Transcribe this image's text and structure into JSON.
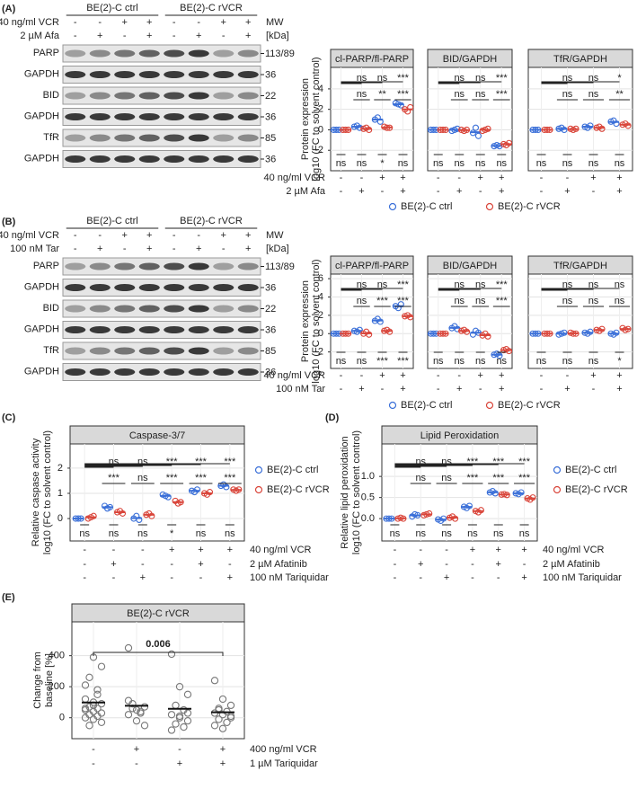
{
  "blots": [
    {
      "label": "(A)",
      "groups": [
        "BE(2)-C ctrl",
        "BE(2)-C rVCR"
      ],
      "treatments": [
        {
          "name": "40 ng/ml VCR",
          "signs": [
            "-",
            "-",
            "+",
            "+",
            "-",
            "-",
            "+",
            "+"
          ]
        },
        {
          "name": "2 µM Afa",
          "signs": [
            "-",
            "+",
            "-",
            "+",
            "-",
            "+",
            "-",
            "+"
          ]
        }
      ],
      "mw_header": [
        "MW",
        "[kDa]"
      ],
      "rows": [
        {
          "name": "PARP",
          "mw": "113/89"
        },
        {
          "name": "GAPDH",
          "mw": "36"
        },
        {
          "name": "BID",
          "mw": "22"
        },
        {
          "name": "GAPDH",
          "mw": "36"
        },
        {
          "name": "TfR",
          "mw": "85"
        },
        {
          "name": "GAPDH",
          "mw": "36"
        }
      ]
    },
    {
      "label": "(B)",
      "groups": [
        "BE(2)-C ctrl",
        "BE(2)-C rVCR"
      ],
      "treatments": [
        {
          "name": "40 ng/ml VCR",
          "signs": [
            "-",
            "-",
            "+",
            "+",
            "-",
            "-",
            "+",
            "+"
          ]
        },
        {
          "name": "100 nM Tar",
          "signs": [
            "-",
            "+",
            "-",
            "+",
            "-",
            "+",
            "-",
            "+"
          ]
        }
      ],
      "mw_header": [
        "MW",
        "[kDa]"
      ],
      "rows": [
        {
          "name": "PARP",
          "mw": "113/89"
        },
        {
          "name": "GAPDH",
          "mw": "36"
        },
        {
          "name": "BID",
          "mw": "22"
        },
        {
          "name": "GAPDH",
          "mw": "36"
        },
        {
          "name": "TfR",
          "mw": "85"
        },
        {
          "name": "GAPDH",
          "mw": "36"
        }
      ]
    }
  ],
  "chart_data": [
    {
      "type": "dot",
      "ylabel": [
        "Protein expression",
        "log10 (FC to solvent control)"
      ],
      "ylim": [
        -4,
        6.1
      ],
      "yticks": [
        -2,
        0,
        2,
        4
      ],
      "grid": true,
      "legend": "bottom",
      "series": [
        {
          "name": "BE(2)-C ctrl",
          "color": "#3a6fd8"
        },
        {
          "name": "BE(2)-C rVCR",
          "color": "#d9453a"
        }
      ],
      "conditions": [
        {
          "name": "40 ng/ml VCR",
          "signs": [
            "-",
            "-",
            "+",
            "+"
          ]
        },
        {
          "name": "2 µM Afa",
          "signs": [
            "-",
            "+",
            "-",
            "+"
          ]
        }
      ],
      "facets": [
        {
          "title": "cl-PARP/fl-PARP",
          "values": [
            [
              [
                0,
                0,
                0
              ],
              [
                0.3,
                0.4,
                0.2
              ],
              [
                1.0,
                1.2,
                0.8
              ],
              [
                2.6,
                2.5,
                2.4
              ]
            ],
            [
              [
                0,
                0,
                0
              ],
              [
                0.1,
                0.2,
                0
              ],
              [
                0.3,
                0.2,
                0.2
              ],
              [
                2.0,
                1.8,
                2.2
              ]
            ]
          ],
          "sig_top": [
            "ns",
            "ns",
            "***"
          ],
          "sig_mid": [
            "ns",
            "**",
            "***"
          ],
          "sig_bottom": [
            "ns",
            "ns",
            "*",
            "ns"
          ]
        },
        {
          "title": "BID/GAPDH",
          "values": [
            [
              [
                0,
                0,
                0
              ],
              [
                -0.1,
                0,
                0.1
              ],
              [
                -0.3,
                0.2,
                -0.6
              ],
              [
                -1.6,
                -1.5,
                -1.6
              ]
            ],
            [
              [
                0,
                0,
                0
              ],
              [
                0,
                -0.1,
                0
              ],
              [
                -0.1,
                0,
                0.1
              ],
              [
                -1.4,
                -1.5,
                -1.3
              ]
            ]
          ],
          "sig_top": [
            "ns",
            "ns",
            "***"
          ],
          "sig_mid": [
            "ns",
            "ns",
            "***"
          ],
          "sig_bottom": [
            "ns",
            "ns",
            "ns",
            "ns"
          ]
        },
        {
          "title": "TfR/GAPDH",
          "values": [
            [
              [
                0,
                0,
                0
              ],
              [
                0.1,
                0.2,
                0
              ],
              [
                0.3,
                0.2,
                0.4
              ],
              [
                0.8,
                0.9,
                0.6
              ]
            ],
            [
              [
                0,
                0,
                0
              ],
              [
                0.1,
                0,
                0.1
              ],
              [
                0.2,
                0.3,
                0.1
              ],
              [
                0.5,
                0.6,
                0.4
              ]
            ]
          ],
          "sig_top": [
            "ns",
            "ns",
            "*"
          ],
          "sig_mid": [
            "ns",
            "ns",
            "**"
          ],
          "sig_bottom": [
            "ns",
            "ns",
            "ns",
            "ns"
          ]
        }
      ]
    },
    {
      "type": "dot",
      "ylabel": [
        "Protein expression",
        "log10 (FC to solvent control)"
      ],
      "ylim": [
        -3.8,
        6.5
      ],
      "yticks": [
        -2,
        0,
        2,
        4,
        6
      ],
      "grid": true,
      "legend": "bottom",
      "series": [
        {
          "name": "BE(2)-C ctrl",
          "color": "#3a6fd8"
        },
        {
          "name": "BE(2)-C rVCR",
          "color": "#d9453a"
        }
      ],
      "conditions": [
        {
          "name": "40 ng/ml VCR",
          "signs": [
            "-",
            "-",
            "+",
            "+"
          ]
        },
        {
          "name": "100 nM Tar",
          "signs": [
            "-",
            "+",
            "-",
            "+"
          ]
        }
      ],
      "facets": [
        {
          "title": "cl-PARP/fl-PARP",
          "values": [
            [
              [
                0,
                0,
                0
              ],
              [
                0.3,
                0.2,
                0.4
              ],
              [
                1.4,
                1.6,
                1.3
              ],
              [
                3.0,
                2.8,
                3.2
              ]
            ],
            [
              [
                0,
                0,
                0
              ],
              [
                0,
                0.2,
                -0.1
              ],
              [
                0.3,
                0.4,
                0.2
              ],
              [
                1.9,
                2.0,
                1.8
              ]
            ]
          ],
          "sig_top": [
            "ns",
            "ns",
            "***"
          ],
          "sig_mid": [
            "ns",
            "***",
            "***"
          ],
          "sig_bottom": [
            "ns",
            "ns",
            "***",
            "***"
          ]
        },
        {
          "title": "BID/GAPDH",
          "values": [
            [
              [
                0,
                0,
                0
              ],
              [
                0.6,
                0.8,
                0.5
              ],
              [
                -0.1,
                0.3,
                0.1
              ],
              [
                -2.3,
                -2.2,
                -2.4
              ]
            ],
            [
              [
                0,
                0,
                0
              ],
              [
                0.3,
                0.4,
                0.2
              ],
              [
                -0.2,
                0,
                -0.3
              ],
              [
                -1.8,
                -1.7,
                -1.9
              ]
            ]
          ],
          "sig_top": [
            "ns",
            "ns",
            "***"
          ],
          "sig_mid": [
            "ns",
            "ns",
            "***"
          ],
          "sig_bottom": [
            "ns",
            "ns",
            "ns",
            "ns"
          ]
        },
        {
          "title": "TfR/GAPDH",
          "values": [
            [
              [
                0,
                0,
                0
              ],
              [
                -0.1,
                0,
                0.1
              ],
              [
                0.1,
                0,
                0.2
              ],
              [
                0,
                -0.1,
                0.1
              ]
            ],
            [
              [
                0,
                0,
                0
              ],
              [
                0.1,
                0,
                0
              ],
              [
                0.4,
                0.3,
                0.5
              ],
              [
                0.6,
                0.4,
                0.5
              ]
            ]
          ],
          "sig_top": [
            "ns",
            "ns",
            "ns"
          ],
          "sig_mid": [
            "ns",
            "ns",
            "ns"
          ],
          "sig_bottom": [
            "ns",
            "ns",
            "ns",
            "*"
          ]
        }
      ]
    },
    {
      "type": "dot",
      "label": "(C)",
      "ylabel": [
        "Relative caspase activity",
        "log10 (FC to solvent control)"
      ],
      "ylim": [
        -0.89,
        2.96
      ],
      "yticks": [
        0,
        1,
        2
      ],
      "grid": true,
      "legend": "right",
      "series": [
        {
          "name": "BE(2)-C ctrl",
          "color": "#3a6fd8"
        },
        {
          "name": "BE(2)-C rVCR",
          "color": "#d9453a"
        }
      ],
      "conditions": [
        {
          "name": "40 ng/ml VCR",
          "signs": [
            "-",
            "-",
            "-",
            "+",
            "+",
            "+"
          ]
        },
        {
          "name": "2 µM Afatinib",
          "signs": [
            "-",
            "+",
            "-",
            "-",
            "+",
            "-"
          ]
        },
        {
          "name": "100 nM Tariquidar",
          "signs": [
            "-",
            "-",
            "+",
            "-",
            "-",
            "+"
          ]
        }
      ],
      "facets": [
        {
          "title": "Caspase-3/7",
          "values": [
            [
              [
                0,
                0,
                0
              ],
              [
                0.5,
                0.4,
                0.45
              ],
              [
                0,
                0.1,
                -0.05
              ],
              [
                0.95,
                0.9,
                0.85
              ],
              [
                1.1,
                1.05,
                1.15
              ],
              [
                1.3,
                1.35,
                1.25
              ]
            ],
            [
              [
                0,
                0.05,
                0.1
              ],
              [
                0.25,
                0.3,
                0.2
              ],
              [
                0.15,
                0.2,
                0.1
              ],
              [
                0.7,
                0.6,
                0.65
              ],
              [
                1.0,
                0.95,
                1.05
              ],
              [
                1.15,
                1.1,
                1.15
              ]
            ]
          ],
          "sig_top": [
            "ns",
            "ns",
            "***",
            "***",
            "***"
          ],
          "sig_mid": [
            "***",
            "ns",
            "***",
            "***",
            "***"
          ],
          "sig_bottom": [
            "ns",
            "ns",
            "ns",
            "*",
            "ns",
            "ns"
          ]
        }
      ]
    },
    {
      "type": "dot",
      "label": "(D)",
      "ylabel": [
        "Relative lipid peroxidation",
        "log10 (FC to solvent control)"
      ],
      "ylim": [
        -0.53,
        1.77
      ],
      "yticks": [
        {
          "value": 0,
          "label": "0.0"
        },
        {
          "value": 0.5,
          "label": "0.5"
        },
        {
          "value": 1,
          "label": "1.0"
        }
      ],
      "grid": true,
      "legend": "right",
      "series": [
        {
          "name": "BE(2)-C ctrl",
          "color": "#3a6fd8"
        },
        {
          "name": "BE(2)-C rVCR",
          "color": "#d9453a"
        }
      ],
      "conditions": [
        {
          "name": "40 ng/ml VCR",
          "signs": [
            "-",
            "-",
            "-",
            "+",
            "+",
            "+"
          ]
        },
        {
          "name": "2 µM Afatinib",
          "signs": [
            "-",
            "+",
            "-",
            "-",
            "+",
            "-"
          ]
        },
        {
          "name": "100 nM Tariquidar",
          "signs": [
            "-",
            "-",
            "+",
            "-",
            "-",
            "+"
          ]
        }
      ],
      "facets": [
        {
          "title": "Lipid Peroxidation",
          "values": [
            [
              [
                0,
                0,
                0
              ],
              [
                0.05,
                0.1,
                0.08
              ],
              [
                -0.02,
                -0.05,
                0
              ],
              [
                0.28,
                0.25,
                0.3
              ],
              [
                0.62,
                0.65,
                0.6
              ],
              [
                0.6,
                0.58,
                0.62
              ]
            ],
            [
              [
                0,
                0.02,
                0
              ],
              [
                0.08,
                0.1,
                0.12
              ],
              [
                0.02,
                0.05,
                0
              ],
              [
                0.18,
                0.15,
                0.2
              ],
              [
                0.57,
                0.58,
                0.56
              ],
              [
                0.48,
                0.45,
                0.5
              ]
            ]
          ],
          "sig_top": [
            "ns",
            "ns",
            "***",
            "***",
            "***"
          ],
          "sig_mid": [
            "ns",
            "ns",
            "***",
            "***",
            "***"
          ],
          "sig_bottom": [
            "ns",
            "ns",
            "ns",
            "ns",
            "ns",
            "ns"
          ]
        }
      ]
    },
    {
      "type": "dot",
      "label": "(E)",
      "ylabel": [
        "Change from",
        "baseline [%]"
      ],
      "ylim": [
        -135,
        618
      ],
      "yticks": [
        0,
        200,
        400
      ],
      "grid": true,
      "color": "#777777",
      "conditions": [
        {
          "name": "400 ng/ml VCR",
          "signs": [
            "-",
            "+",
            "-",
            "+"
          ]
        },
        {
          "name": "1 µM Tariquidar",
          "signs": [
            "-",
            "-",
            "+",
            "+"
          ]
        }
      ],
      "facets": [
        {
          "title": "BE(2)-C rVCR",
          "annotation": "0.006",
          "values": [
            [
              [
                60,
                390,
                330,
                260,
                180,
                120,
                100,
                90,
                70,
                60,
                50,
                40,
                30,
                20,
                10,
                0,
                -10,
                -30,
                -50,
                150,
                210,
                80
              ],
              [
                450,
                50,
                70,
                90,
                30,
                20,
                -20,
                -50,
                60,
                40,
                110
              ],
              [
                410,
                200,
                150,
                80,
                50,
                20,
                0,
                -20,
                -40,
                -60,
                -80,
                10,
                30
              ],
              [
                240,
                120,
                80,
                60,
                40,
                30,
                20,
                0,
                -10,
                -30,
                -50,
                -70,
                10,
                50
              ]
            ]
          ]
        }
      ]
    }
  ]
}
